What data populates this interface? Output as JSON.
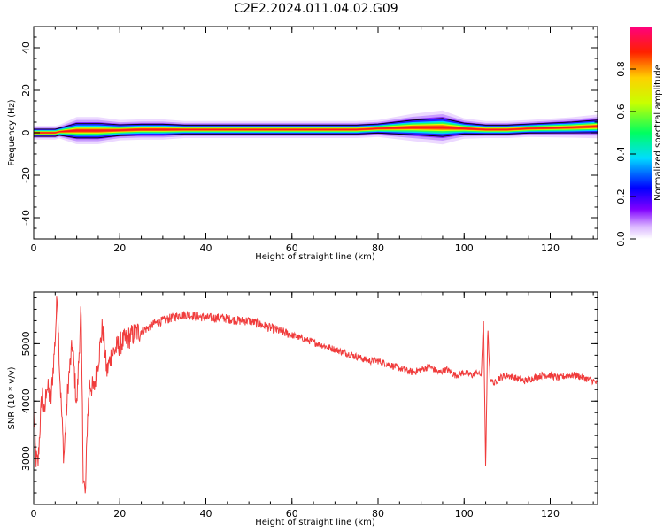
{
  "figure": {
    "title": "C2E2.2024.011.04.02.G09"
  },
  "chart_data": [
    {
      "type": "heatmap",
      "xlabel": "Height of straight line (km)",
      "ylabel": "Frequency (Hz)",
      "xlim": [
        0,
        131
      ],
      "ylim": [
        -50,
        50
      ],
      "xticks": [
        0,
        20,
        40,
        60,
        80,
        100,
        120
      ],
      "yticks": [
        -40,
        -20,
        0,
        20,
        40
      ],
      "grid": false,
      "colorbar": {
        "label": "Normalized spectral amplitude",
        "range": [
          0,
          1
        ],
        "ticks": [
          "0.0",
          "0.2",
          "0.4",
          "0.6",
          "0.8"
        ],
        "colormap": "rainbow (white-purple-blue-cyan-green-yellow-red-magenta)"
      },
      "ridge": {
        "frequency_hz": [
          0,
          0,
          0.5,
          1,
          1,
          1.2,
          1.5,
          1.5,
          1.5,
          1.5,
          1.5,
          1.5,
          1.5,
          1.5,
          1.5,
          1.5,
          1.5,
          2,
          2.5,
          2.5,
          2,
          1.5,
          1.5,
          1.5,
          2,
          2.5,
          3
        ],
        "km": [
          0,
          5,
          6,
          10,
          15,
          20,
          25,
          30,
          35,
          40,
          45,
          50,
          55,
          60,
          65,
          70,
          75,
          80,
          88,
          95,
          100,
          105,
          108,
          110,
          115,
          125,
          131
        ],
        "halo_width_hz": [
          2,
          2,
          2,
          4,
          4,
          3,
          3,
          3,
          2.5,
          2.5,
          2.5,
          2.5,
          2.5,
          2.5,
          2.5,
          2.5,
          2.5,
          2.5,
          4,
          5,
          3,
          2.5,
          2.5,
          2.5,
          2.5,
          3,
          3.5
        ]
      }
    },
    {
      "type": "line",
      "xlabel": "Height of straight line (km)",
      "ylabel": "SNR (10 * v/v)",
      "xlim": [
        0,
        131
      ],
      "ylim": [
        2200,
        5900
      ],
      "xticks": [
        0,
        20,
        40,
        60,
        80,
        100,
        120
      ],
      "yticks": [
        3000,
        4000,
        5000
      ],
      "grid": false,
      "series": [
        {
          "color": "#f03c3c",
          "x": [
            0,
            0.5,
            1,
            1.5,
            2,
            2.5,
            3,
            4,
            5,
            5.5,
            6,
            7,
            8,
            9,
            10,
            11,
            11.5,
            12,
            12.5,
            13,
            14,
            15,
            16,
            17,
            18,
            20,
            22,
            24,
            26,
            28,
            30,
            32,
            34,
            36,
            38,
            40,
            42,
            44,
            46,
            48,
            50,
            52,
            54,
            56,
            58,
            60,
            62,
            64,
            66,
            68,
            70,
            72,
            74,
            76,
            78,
            80,
            82,
            84,
            86,
            88,
            90,
            92,
            94,
            96,
            98,
            100,
            102,
            103,
            104,
            104.5,
            105,
            105.5,
            106,
            107,
            108,
            110,
            112,
            114,
            116,
            118,
            120,
            122,
            124,
            126,
            128,
            130,
            131
          ],
          "y": [
            3800,
            3000,
            2900,
            3600,
            4200,
            3700,
            4300,
            4000,
            5100,
            5900,
            4600,
            3000,
            4300,
            5000,
            3900,
            5600,
            2800,
            2300,
            3700,
            4300,
            4200,
            4700,
            5300,
            4500,
            4800,
            5000,
            5100,
            5200,
            5250,
            5350,
            5400,
            5450,
            5500,
            5500,
            5480,
            5450,
            5450,
            5450,
            5420,
            5400,
            5400,
            5350,
            5300,
            5250,
            5200,
            5150,
            5100,
            5050,
            5000,
            4950,
            4900,
            4850,
            4800,
            4750,
            4700,
            4700,
            4650,
            4600,
            4550,
            4500,
            4550,
            4600,
            4500,
            4550,
            4450,
            4500,
            4450,
            4500,
            4450,
            5500,
            2800,
            5300,
            4400,
            4300,
            4400,
            4450,
            4400,
            4350,
            4400,
            4450,
            4450,
            4400,
            4450,
            4450,
            4400,
            4350,
            4300
          ]
        }
      ]
    }
  ]
}
